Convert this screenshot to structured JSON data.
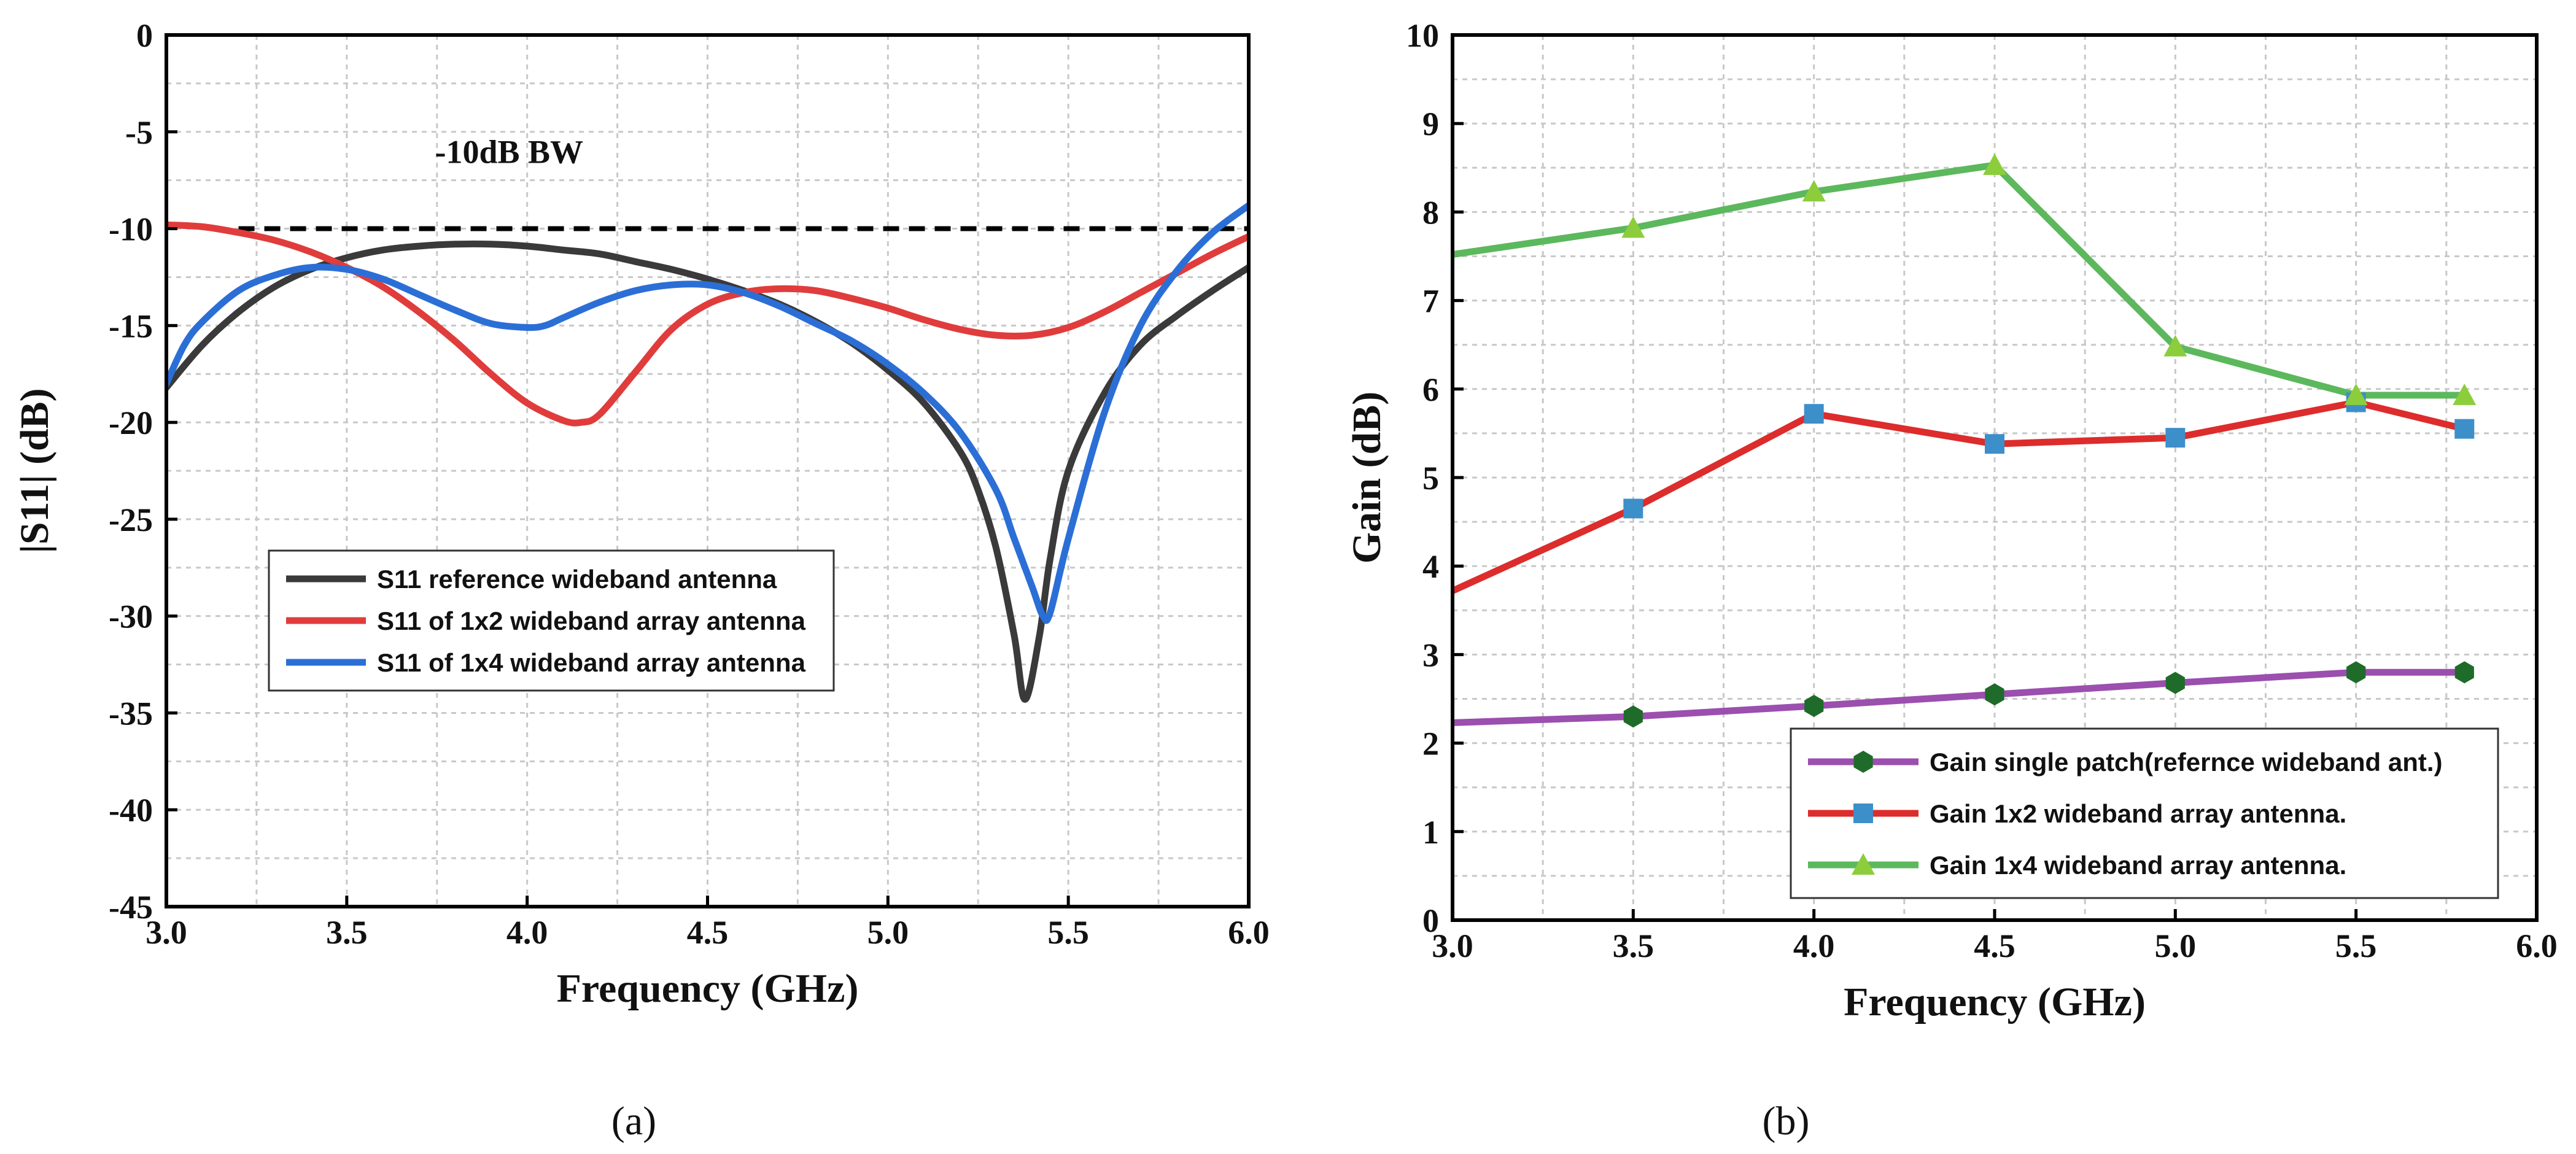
{
  "chart_data": [
    {
      "type": "line",
      "panel_label": "(a)",
      "xlabel": "Frequency (GHz)",
      "ylabel": "|S11| (dB)",
      "xlim": [
        3.0,
        6.0
      ],
      "ylim": [
        -45,
        0
      ],
      "xticks": [
        "3.0",
        "3.5",
        "4.0",
        "4.5",
        "5.0",
        "5.5",
        "6.0"
      ],
      "yticks": [
        "0",
        "-5",
        "-10",
        "-15",
        "-20",
        "-25",
        "-30",
        "-35",
        "-40",
        "-45"
      ],
      "grid": true,
      "legend_position": "center-left",
      "annotation": {
        "text": "-10dB BW",
        "x": 3.95,
        "y": -6.6
      },
      "reference_line": {
        "y": -10,
        "x_start": 3.2,
        "x_end": 6.0,
        "style": "dashed"
      },
      "series": [
        {
          "name": "S11  reference wideband antenna",
          "color": "#3a3a3a",
          "x": [
            3.0,
            3.1,
            3.2,
            3.3,
            3.4,
            3.5,
            3.6,
            3.7,
            3.8,
            3.9,
            4.0,
            4.1,
            4.2,
            4.3,
            4.4,
            4.5,
            4.6,
            4.7,
            4.8,
            4.9,
            5.0,
            5.1,
            5.2,
            5.25,
            5.3,
            5.35,
            5.38,
            5.42,
            5.45,
            5.5,
            5.6,
            5.7,
            5.8,
            5.9,
            6.0
          ],
          "values": [
            -18.2,
            -16.0,
            -14.3,
            -13.0,
            -12.1,
            -11.5,
            -11.1,
            -10.9,
            -10.8,
            -10.8,
            -10.9,
            -11.1,
            -11.3,
            -11.7,
            -12.1,
            -12.6,
            -13.2,
            -13.9,
            -14.8,
            -15.9,
            -17.3,
            -19.0,
            -21.5,
            -23.5,
            -26.5,
            -31.0,
            -34.3,
            -31.0,
            -27.0,
            -22.5,
            -18.5,
            -16.0,
            -14.5,
            -13.2,
            -12.0
          ]
        },
        {
          "name": "S11  of 1x2 wideband array antenna",
          "color": "#e03c3c",
          "x": [
            3.0,
            3.1,
            3.2,
            3.3,
            3.4,
            3.5,
            3.6,
            3.7,
            3.8,
            3.9,
            4.0,
            4.1,
            4.15,
            4.2,
            4.3,
            4.4,
            4.5,
            4.6,
            4.7,
            4.8,
            4.9,
            5.0,
            5.1,
            5.2,
            5.3,
            5.4,
            5.5,
            5.6,
            5.7,
            5.8,
            5.9,
            6.0
          ],
          "values": [
            -9.8,
            -9.9,
            -10.2,
            -10.6,
            -11.2,
            -12.0,
            -13.0,
            -14.3,
            -15.8,
            -17.5,
            -19.0,
            -19.9,
            -20.0,
            -19.6,
            -17.4,
            -15.2,
            -13.9,
            -13.3,
            -13.1,
            -13.2,
            -13.6,
            -14.1,
            -14.7,
            -15.2,
            -15.5,
            -15.5,
            -15.1,
            -14.3,
            -13.3,
            -12.3,
            -11.3,
            -10.4
          ]
        },
        {
          "name": "S11  of 1x4 wideband array antenna",
          "color": "#2b6fd6",
          "x": [
            3.0,
            3.05,
            3.1,
            3.2,
            3.3,
            3.4,
            3.5,
            3.6,
            3.7,
            3.8,
            3.9,
            4.0,
            4.05,
            4.1,
            4.2,
            4.3,
            4.4,
            4.5,
            4.6,
            4.7,
            4.8,
            4.9,
            5.0,
            5.1,
            5.2,
            5.3,
            5.35,
            5.4,
            5.43,
            5.45,
            5.5,
            5.6,
            5.7,
            5.8,
            5.9,
            6.0
          ],
          "values": [
            -18.0,
            -16.0,
            -14.8,
            -13.2,
            -12.4,
            -12.0,
            -12.1,
            -12.6,
            -13.4,
            -14.2,
            -14.9,
            -15.1,
            -15.0,
            -14.6,
            -13.8,
            -13.2,
            -12.9,
            -12.9,
            -13.3,
            -14.0,
            -14.9,
            -15.8,
            -17.0,
            -18.5,
            -20.5,
            -23.5,
            -26.0,
            -28.5,
            -30.0,
            -29.8,
            -26.0,
            -19.5,
            -15.0,
            -12.2,
            -10.2,
            -8.8
          ]
        }
      ]
    },
    {
      "type": "line",
      "panel_label": "(b)",
      "xlabel": "Frequency (GHz)",
      "ylabel": "Gain (dB)",
      "xlim": [
        3.0,
        6.0
      ],
      "ylim": [
        0,
        10
      ],
      "xticks": [
        "3.0",
        "3.5",
        "4.0",
        "4.5",
        "5.0",
        "5.5",
        "6.0"
      ],
      "yticks": [
        "0",
        "1",
        "2",
        "3",
        "4",
        "5",
        "6",
        "7",
        "8",
        "9",
        "10"
      ],
      "grid": true,
      "legend_position": "bottom-right",
      "series": [
        {
          "name": "Gain single patch(refernce wideband ant.)",
          "color": "#9b4fae",
          "marker": "hexagon",
          "marker_color": "#1f6b2a",
          "x": [
            3.0,
            3.5,
            4.0,
            4.5,
            5.0,
            5.5,
            5.8
          ],
          "values": [
            2.23,
            2.3,
            2.42,
            2.55,
            2.68,
            2.8,
            2.8
          ]
        },
        {
          "name": "Gain 1x2 wideband array antenna.",
          "color": "#dd2c2c",
          "marker": "square",
          "marker_color": "#3d8fc9",
          "x": [
            3.0,
            3.5,
            4.0,
            4.5,
            5.0,
            5.5,
            5.8
          ],
          "values": [
            3.72,
            4.65,
            5.72,
            5.38,
            5.45,
            5.85,
            5.55
          ]
        },
        {
          "name": "Gain 1x4 wideband array antenna.",
          "color": "#5cb85c",
          "marker": "triangle",
          "marker_color": "#8ccd3c",
          "x": [
            3.0,
            3.5,
            4.0,
            4.5,
            5.0,
            5.5,
            5.8
          ],
          "values": [
            7.52,
            7.82,
            8.23,
            8.53,
            6.48,
            5.93,
            5.93
          ]
        }
      ]
    }
  ]
}
